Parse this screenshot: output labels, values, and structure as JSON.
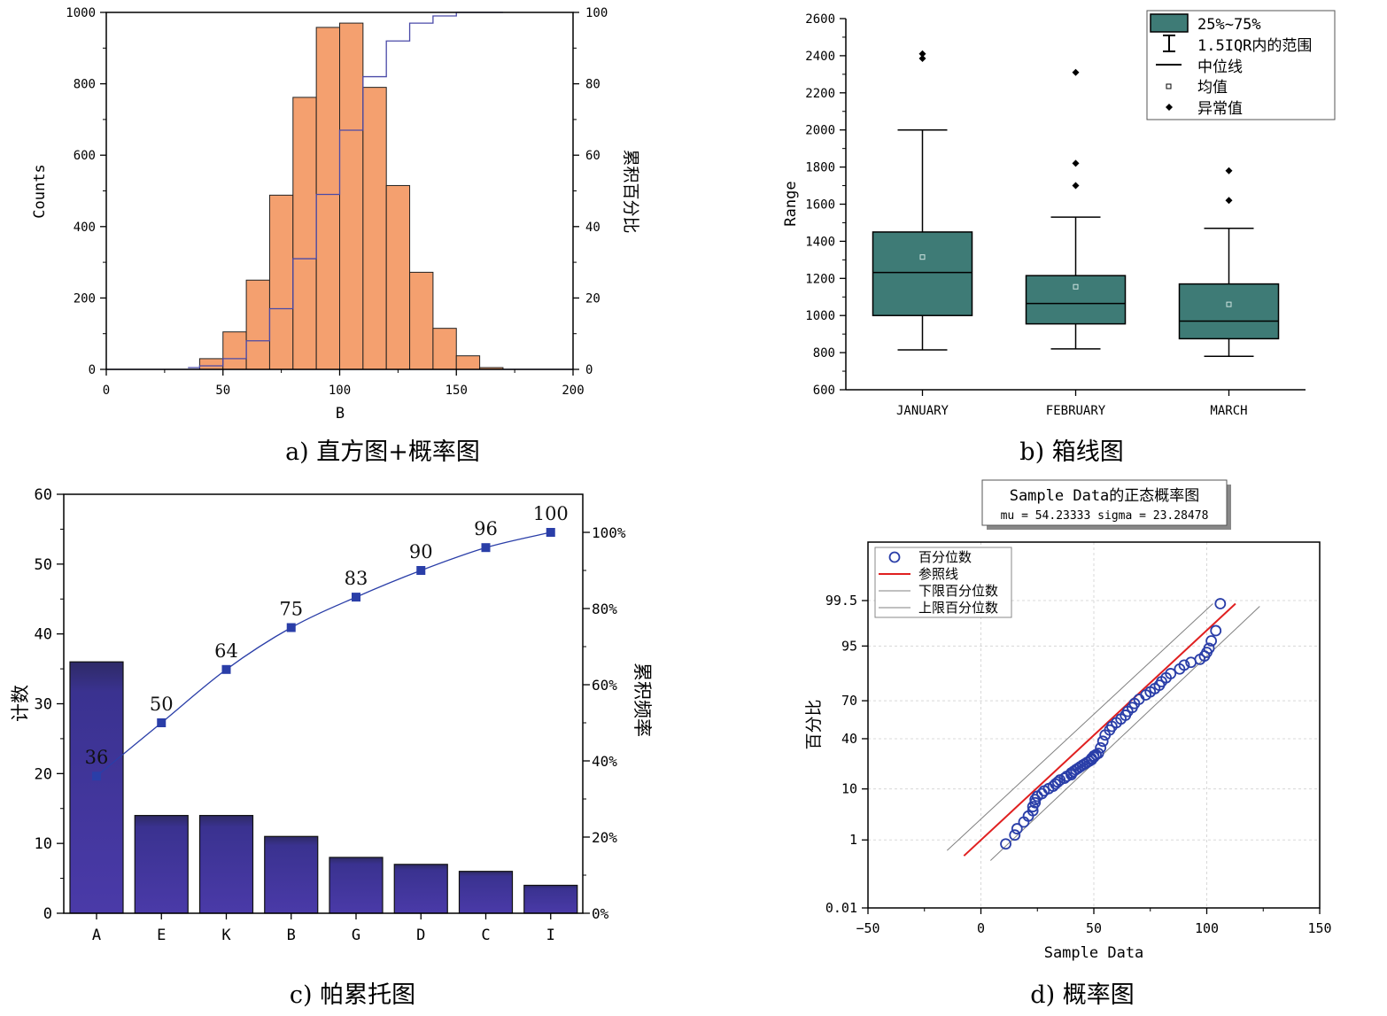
{
  "panels": {
    "a": {
      "caption": "a) 直方图+概率图"
    },
    "b": {
      "caption": "b) 箱线图"
    },
    "c": {
      "caption": "c) 帕累托图"
    },
    "d": {
      "caption": "d) 概率图"
    }
  },
  "colors": {
    "hist_bar": "#f4a06f",
    "hist_line": "#4a4aa8",
    "box_fill": "#3e7b76",
    "pareto_bar_top": "#2e2a66",
    "pareto_bar_bottom": "#4a3aa8",
    "pareto_line": "#2a3ea8",
    "qq_marker": "#2a3ea8",
    "qq_ref": "#e02020",
    "qq_band": "#808080"
  },
  "chart_data": [
    {
      "id": "histogram",
      "type": "bar",
      "xlabel": "B",
      "ylabel": "Counts",
      "y2label": "累积百分比",
      "xlim": [
        0,
        200
      ],
      "ylim": [
        0,
        1000
      ],
      "y2lim": [
        0,
        100
      ],
      "x_ticks": [
        "0",
        "50",
        "100",
        "150",
        "200"
      ],
      "y_ticks": [
        "0",
        "200",
        "400",
        "600",
        "800",
        "1000"
      ],
      "y2_ticks": [
        "0",
        "20",
        "40",
        "60",
        "80",
        "100"
      ],
      "bins": {
        "start": [
          40,
          50,
          60,
          70,
          80,
          90,
          100,
          110,
          120,
          130,
          140,
          150,
          160
        ],
        "width": 10,
        "counts": [
          30,
          105,
          250,
          488,
          762,
          958,
          970,
          790,
          515,
          272,
          115,
          38,
          5
        ]
      },
      "cumulative_percent": {
        "x": [
          35,
          40,
          50,
          60,
          70,
          80,
          90,
          100,
          110,
          120,
          130,
          140,
          150,
          160,
          170
        ],
        "y": [
          0.5,
          1,
          3,
          8,
          17,
          31,
          49,
          67,
          82,
          92,
          97,
          99,
          100,
          100,
          100
        ]
      }
    },
    {
      "id": "boxplot",
      "type": "box",
      "ylabel": "Range",
      "ylim": [
        600,
        2600
      ],
      "y_ticks": [
        "600",
        "800",
        "1000",
        "1200",
        "1400",
        "1600",
        "1800",
        "2000",
        "2200",
        "2400",
        "2600"
      ],
      "categories": [
        "JANUARY",
        "FEBRUARY",
        "MARCH"
      ],
      "boxes": [
        {
          "whisker_low": 815,
          "q1": 1000,
          "median": 1232,
          "q3": 1450,
          "whisker_high": 2000,
          "mean": 1315,
          "outliers": [
            2385,
            2410
          ]
        },
        {
          "whisker_low": 820,
          "q1": 955,
          "median": 1065,
          "q3": 1215,
          "whisker_high": 1530,
          "mean": 1155,
          "outliers": [
            1700,
            1820,
            2310
          ]
        },
        {
          "whisker_low": 780,
          "q1": 875,
          "median": 970,
          "q3": 1170,
          "whisker_high": 1470,
          "mean": 1060,
          "outliers": [
            1620,
            1780
          ]
        }
      ],
      "legend": {
        "position": "top-right",
        "items": [
          "25%~75%",
          "1.5IQR内的范围",
          "中位线",
          "均值",
          "异常值"
        ]
      }
    },
    {
      "id": "pareto",
      "type": "bar",
      "ylabel": "计数",
      "y2label": "累积频率",
      "ylim": [
        0,
        60
      ],
      "y_ticks": [
        "0",
        "10",
        "20",
        "30",
        "40",
        "50",
        "60"
      ],
      "y2_ticks": [
        "0%",
        "20%",
        "40%",
        "60%",
        "80%",
        "100%"
      ],
      "categories": [
        "A",
        "E",
        "K",
        "B",
        "G",
        "D",
        "C",
        "I"
      ],
      "values": [
        36,
        14,
        14,
        11,
        8,
        7,
        6,
        4
      ],
      "cumulative_percent": [
        36,
        50,
        64,
        75,
        83,
        90,
        96,
        100
      ],
      "cumulative_labels": [
        "36",
        "50",
        "64",
        "75",
        "83",
        "90",
        "96",
        "100"
      ]
    },
    {
      "id": "probability",
      "type": "scatter",
      "title": "Sample Data的正态概率图",
      "subtitle": "mu = 54.23333   sigma = 23.28478",
      "xlabel": "Sample Data",
      "ylabel": "百分比",
      "xlim": [
        -50,
        150
      ],
      "x_ticks": [
        "−50",
        "0",
        "50",
        "100",
        "150"
      ],
      "y_ticks": [
        "0.01",
        "1",
        "10",
        "40",
        "70",
        "95",
        "99.5"
      ],
      "y_tick_values": [
        0.01,
        1,
        10,
        40,
        70,
        95,
        99.5
      ],
      "mu": 54.23333,
      "sigma": 23.28478,
      "legend": {
        "position": "top-left",
        "items": [
          "百分位数",
          "参照线",
          "下限百分位数",
          "上限百分位数"
        ]
      },
      "points": {
        "x": [
          11,
          15,
          16,
          19,
          21,
          23,
          23,
          24,
          24,
          25,
          27,
          28,
          30,
          32,
          33,
          34,
          35,
          37,
          38,
          40,
          40,
          41,
          42,
          43,
          44,
          45,
          46,
          47,
          48,
          49,
          49,
          50,
          50,
          51,
          52,
          53,
          54,
          55,
          57,
          58,
          60,
          62,
          64,
          65,
          67,
          68,
          70,
          73,
          75,
          77,
          79,
          80,
          82,
          84,
          88,
          90,
          93,
          97,
          99,
          100,
          101,
          102,
          104,
          106
        ],
        "p": [
          0.8,
          1.3,
          1.8,
          2.5,
          3.3,
          4.2,
          5.0,
          5.9,
          6.7,
          7.6,
          8.4,
          9.3,
          10.1,
          11.0,
          11.9,
          12.7,
          13.6,
          14.4,
          15.3,
          16.1,
          17.0,
          17.8,
          18.7,
          19.5,
          20.4,
          21.3,
          22.1,
          23.0,
          23.8,
          24.7,
          25.5,
          26.4,
          27.2,
          28.1,
          29.0,
          33.0,
          38.0,
          43.0,
          47.0,
          50.0,
          53.0,
          56.0,
          59.0,
          62.0,
          65.0,
          68.0,
          71.0,
          74.0,
          76.0,
          78.0,
          80.0,
          82.0,
          84.0,
          86.0,
          88.0,
          89.5,
          90.5,
          91.5,
          92.5,
          93.5,
          94.5,
          96.0,
          97.5,
          99.4
        ]
      }
    }
  ]
}
